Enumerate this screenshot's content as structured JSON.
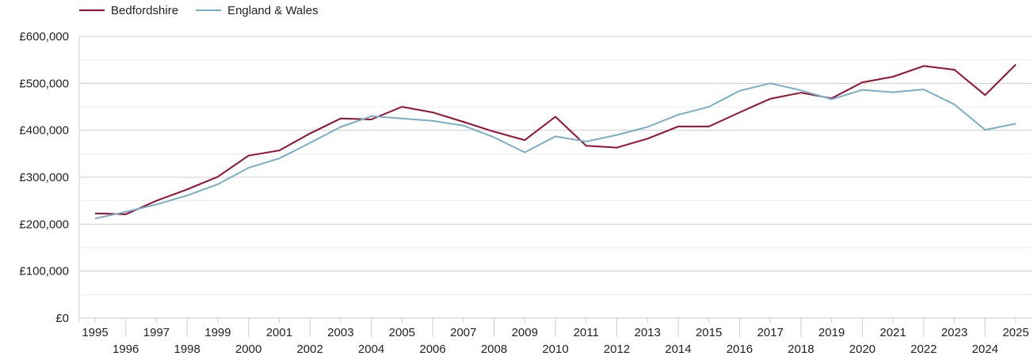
{
  "chart_data": {
    "type": "line",
    "title": "",
    "xlabel": "",
    "ylabel": "",
    "x": [
      1995,
      1996,
      1997,
      1998,
      1999,
      2000,
      2001,
      2002,
      2003,
      2004,
      2005,
      2006,
      2007,
      2008,
      2009,
      2010,
      2011,
      2012,
      2013,
      2014,
      2015,
      2016,
      2017,
      2018,
      2019,
      2020,
      2021,
      2022,
      2023,
      2024,
      2025
    ],
    "ylim": [
      0,
      600000
    ],
    "yticks": [
      0,
      100000,
      200000,
      300000,
      400000,
      500000,
      600000
    ],
    "ytick_labels": [
      "£0",
      "£100,000",
      "£200,000",
      "£300,000",
      "£400,000",
      "£500,000",
      "£600,000"
    ],
    "xtick_labels": [
      "1995",
      "1996",
      "1997",
      "1998",
      "1999",
      "2000",
      "2001",
      "2002",
      "2003",
      "2004",
      "2005",
      "2006",
      "2007",
      "2008",
      "2009",
      "2010",
      "2011",
      "2012",
      "2013",
      "2014",
      "2015",
      "2016",
      "2017",
      "2018",
      "2019",
      "2020",
      "2021",
      "2022",
      "2023",
      "2024",
      "2025"
    ],
    "grid": true,
    "legend_position": "top-left",
    "series": [
      {
        "name": "Bedfordshire",
        "color": "#9b0d2e",
        "values": [
          223000,
          221000,
          250000,
          274000,
          301000,
          346000,
          357000,
          393000,
          425000,
          423000,
          450000,
          438000,
          418000,
          397000,
          379000,
          429000,
          367000,
          363000,
          382000,
          408000,
          408000,
          438000,
          467000,
          480000,
          468000,
          502000,
          514000,
          537000,
          529000,
          475000,
          540000
        ]
      },
      {
        "name": "England & Wales",
        "color": "#77aecb",
        "values": [
          212000,
          226000,
          242000,
          261000,
          285000,
          320000,
          340000,
          373000,
          407000,
          430000,
          425000,
          420000,
          410000,
          385000,
          353000,
          387000,
          376000,
          390000,
          407000,
          433000,
          450000,
          484000,
          500000,
          485000,
          466000,
          486000,
          481000,
          487000,
          455000,
          401000,
          414000
        ]
      }
    ]
  }
}
